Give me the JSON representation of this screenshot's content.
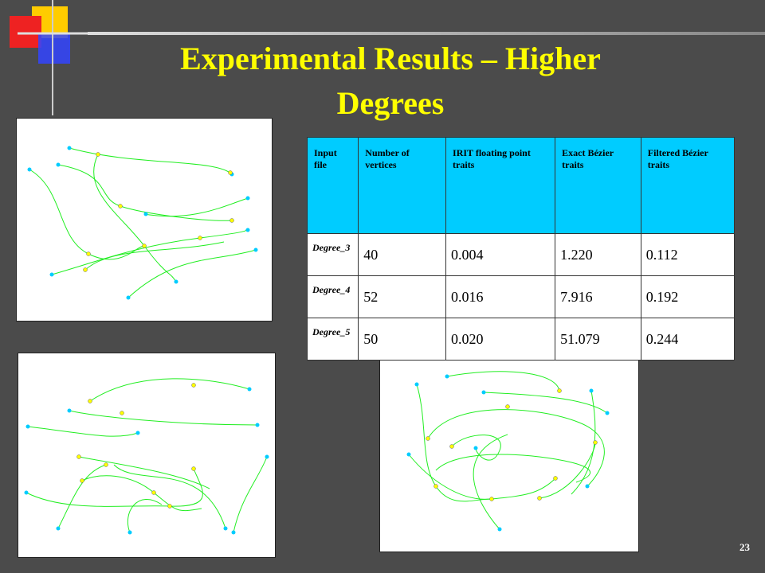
{
  "header": {
    "title_line1": "Experimental Results – Higher",
    "title_line2": "Degrees"
  },
  "table": {
    "headers": [
      "Input file",
      "Number of vertices",
      "IRIT floating point traits",
      "Exact Bézier traits",
      "Filtered Bézier traits"
    ],
    "rows": [
      [
        "Degree_3",
        "40",
        "0.004",
        "1.220",
        "0.112"
      ],
      [
        "Degree_4",
        "52",
        "0.016",
        "7.916",
        "0.192"
      ],
      [
        "Degree_5",
        "50",
        "0.020",
        "51.079",
        "0.244"
      ]
    ]
  },
  "footer": {
    "page_number": "23"
  }
}
